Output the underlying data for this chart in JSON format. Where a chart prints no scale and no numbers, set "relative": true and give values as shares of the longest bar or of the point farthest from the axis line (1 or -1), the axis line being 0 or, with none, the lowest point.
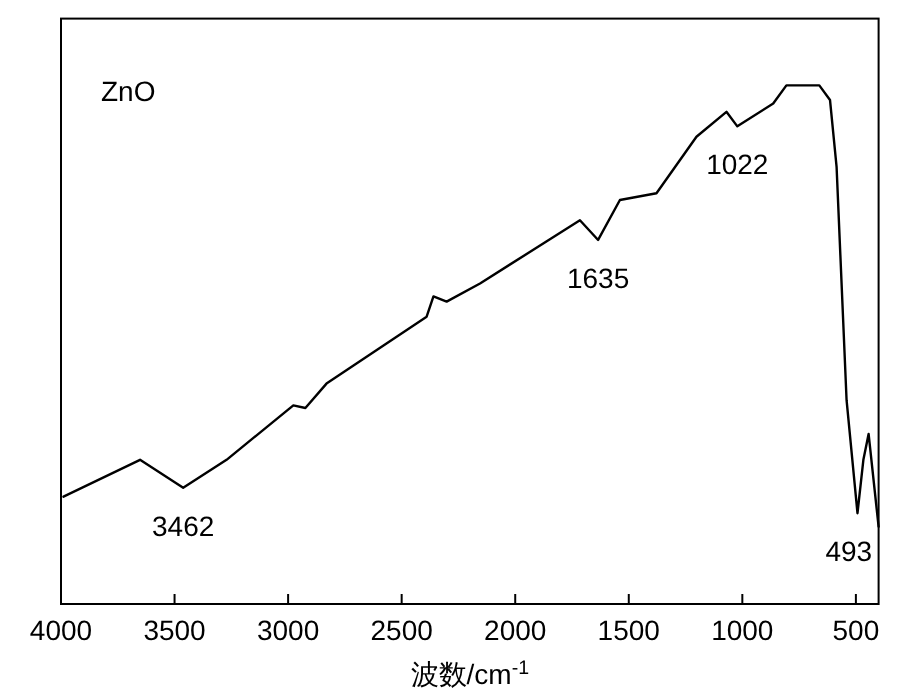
{
  "chart_data": {
    "type": "line",
    "relative": true,
    "xlabel": "波数/cm$^{-1}$",
    "xlim": [
      4000,
      400
    ],
    "xticks": [
      4000,
      3500,
      3000,
      2500,
      2000,
      1500,
      1000,
      500
    ],
    "annotations": [
      "ZnO",
      {
        "text": "3462",
        "x": 3462,
        "y": 0.224
      },
      {
        "text": "1635",
        "x": 1635,
        "y": 0.702
      },
      {
        "text": "1022",
        "x": 1022,
        "y": 0.921
      },
      {
        "text": "493",
        "x": 493,
        "y": 0.175
      }
    ],
    "series": [
      {
        "color": "#000000",
        "x": [
          3989,
          3652,
          3462,
          3271,
          2977,
          2924,
          2831,
          2390,
          2360,
          2302,
          2155,
          1715,
          1635,
          1539,
          1378,
          1202,
          1070,
          1022,
          864,
          806,
          661,
          614,
          585,
          541,
          493,
          467,
          444,
          400
        ],
        "values": [
          0.207,
          0.278,
          0.224,
          0.278,
          0.383,
          0.378,
          0.425,
          0.554,
          0.593,
          0.583,
          0.618,
          0.74,
          0.702,
          0.779,
          0.792,
          0.901,
          0.949,
          0.921,
          0.965,
          1,
          1,
          0.972,
          0.843,
          0.393,
          0.175,
          0.278,
          0.328,
          0.149
        ]
      }
    ]
  }
}
